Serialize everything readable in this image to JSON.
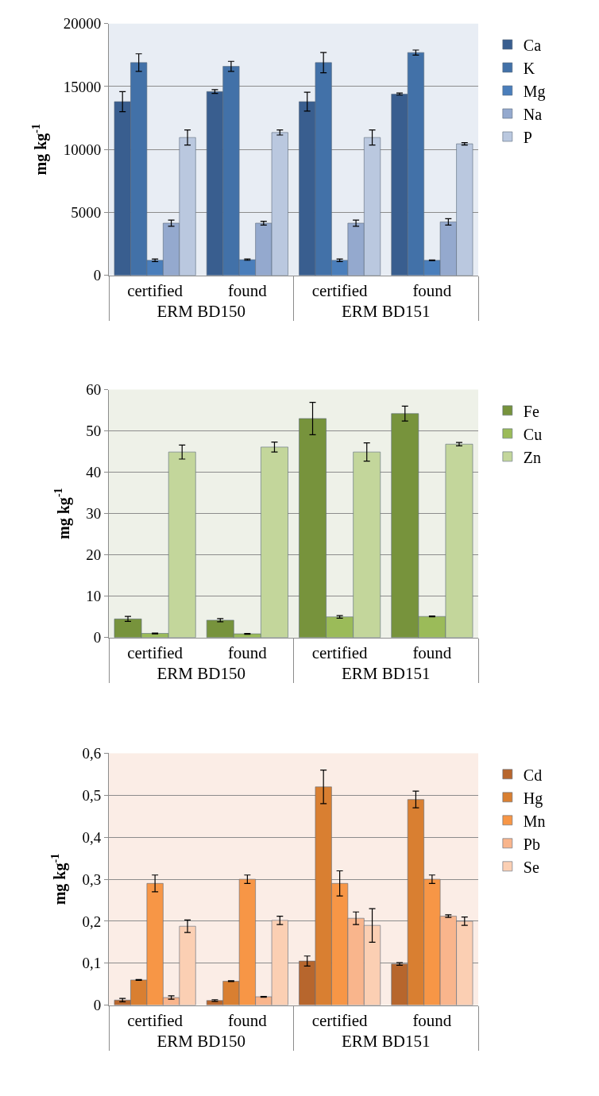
{
  "chart_data": [
    {
      "type": "bar",
      "ylabel": "mg kg$^{-1}$",
      "categories": [
        "certified",
        "found",
        "certified",
        "found"
      ],
      "annotations": [
        "ERM BD150",
        "ERM BD151"
      ],
      "ylim": [
        0,
        20000
      ],
      "yticks": [
        0,
        5000,
        10000,
        15000,
        20000
      ],
      "grid": "y",
      "legend": "right",
      "series": [
        {
          "name": "Ca",
          "color": "#395e8f",
          "values": [
            13800,
            14600,
            13800,
            14400
          ],
          "errors": [
            800,
            150,
            750,
            80
          ]
        },
        {
          "name": "K",
          "color": "#4271a8",
          "values": [
            16900,
            16600,
            16900,
            17700
          ],
          "errors": [
            700,
            400,
            800,
            200
          ]
        },
        {
          "name": "Mg",
          "color": "#4a7ebb",
          "values": [
            1200,
            1250,
            1200,
            1200
          ],
          "errors": [
            100,
            50,
            100,
            30
          ]
        },
        {
          "name": "Na",
          "color": "#94a9ce",
          "values": [
            4150,
            4150,
            4150,
            4250
          ],
          "errors": [
            250,
            150,
            250,
            250
          ]
        },
        {
          "name": "P",
          "color": "#bac8df",
          "values": [
            10950,
            11350,
            10950,
            10450
          ],
          "errors": [
            600,
            200,
            600,
            100
          ]
        }
      ]
    },
    {
      "type": "bar",
      "ylabel": "mg kg$^{-1}$",
      "categories": [
        "certified",
        "found",
        "certified",
        "found"
      ],
      "annotations": [
        "ERM BD150",
        "ERM BD151"
      ],
      "ylim": [
        0,
        60
      ],
      "yticks": [
        0,
        10,
        20,
        30,
        40,
        50,
        60
      ],
      "grid": "y",
      "legend": "right",
      "series": [
        {
          "name": "Fe",
          "color": "#77933c",
          "values": [
            4.5,
            4.2,
            53,
            54.2
          ],
          "errors": [
            0.6,
            0.4,
            3.9,
            1.8
          ]
        },
        {
          "name": "Cu",
          "color": "#9bbb59",
          "values": [
            1.0,
            0.9,
            5.0,
            5.1
          ],
          "errors": [
            0.1,
            0.1,
            0.3,
            0.1
          ]
        },
        {
          "name": "Zn",
          "color": "#c3d69b",
          "values": [
            44.9,
            46.1,
            44.9,
            46.8
          ],
          "errors": [
            1.7,
            1.2,
            2.2,
            0.4
          ]
        }
      ]
    },
    {
      "type": "bar",
      "ylabel": "mg kg$^{-1}$",
      "categories": [
        "certified",
        "found",
        "certified",
        "found"
      ],
      "annotations": [
        "ERM BD150",
        "ERM BD151"
      ],
      "ylim": [
        0,
        0.6
      ],
      "yticks": [
        0,
        {
          "value": 0.1,
          "label": "0,1"
        },
        {
          "value": 0.2,
          "label": "0,2"
        },
        {
          "value": 0.3,
          "label": "0,3"
        },
        {
          "value": 0.4,
          "label": "0,4"
        },
        {
          "value": 0.5,
          "label": "0,5"
        },
        {
          "value": 0.6,
          "label": "0,6"
        }
      ],
      "grid": "y",
      "legend": "right",
      "series": [
        {
          "name": "Cd",
          "color": "#b7662d",
          "values": [
            0.012,
            0.011,
            0.105,
            0.098
          ],
          "errors": [
            0.004,
            0.002,
            0.012,
            0.003
          ]
        },
        {
          "name": "Hg",
          "color": "#d97f31",
          "values": [
            0.06,
            0.057,
            0.52,
            0.49
          ],
          "errors": [
            0.001,
            0.001,
            0.04,
            0.02
          ]
        },
        {
          "name": "Mn",
          "color": "#f79646",
          "values": [
            0.29,
            0.3,
            0.29,
            0.3
          ],
          "errors": [
            0.02,
            0.01,
            0.03,
            0.01
          ]
        },
        {
          "name": "Pb",
          "color": "#f9b58c",
          "values": [
            0.018,
            0.02,
            0.207,
            0.212
          ],
          "errors": [
            0.004,
            0.001,
            0.015,
            0.003
          ]
        },
        {
          "name": "Se",
          "color": "#fbcfb3",
          "values": [
            0.188,
            0.202,
            0.19,
            0.2
          ],
          "errors": [
            0.015,
            0.01,
            0.04,
            0.01
          ]
        }
      ]
    }
  ]
}
